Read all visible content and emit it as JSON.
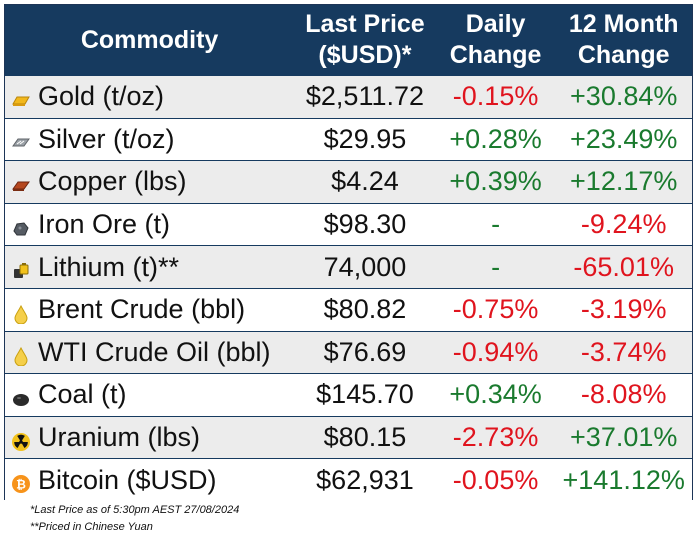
{
  "header": {
    "commodity": "Commodity",
    "last_price_line1": "Last Price",
    "last_price_line2": "($USD)*",
    "daily_line1": "Daily",
    "daily_line2": "Change",
    "month_line1": "12 Month",
    "month_line2": "Change"
  },
  "rows": [
    {
      "name": "Gold (t/oz)",
      "icon": "gold-bar-icon",
      "price": "$2,511.72",
      "daily": "-0.15%",
      "daily_dir": "neg",
      "yearly": "+30.84%",
      "yearly_dir": "pos"
    },
    {
      "name": "Silver (t/oz)",
      "icon": "silver-bar-icon",
      "price": "$29.95",
      "daily": "+0.28%",
      "daily_dir": "pos",
      "yearly": "+23.49%",
      "yearly_dir": "pos"
    },
    {
      "name": "Copper (lbs)",
      "icon": "copper-bar-icon",
      "price": "$4.24",
      "daily": "+0.39%",
      "daily_dir": "pos",
      "yearly": "+12.17%",
      "yearly_dir": "pos"
    },
    {
      "name": "Iron Ore (t)",
      "icon": "iron-ore-icon",
      "price": "$98.30",
      "daily": "-",
      "daily_dir": "neu",
      "yearly": "-9.24%",
      "yearly_dir": "neg"
    },
    {
      "name": "Lithium (t)**",
      "icon": "lithium-battery-icon",
      "price": "74,000",
      "daily": "-",
      "daily_dir": "neu",
      "yearly": "-65.01%",
      "yearly_dir": "neg"
    },
    {
      "name": "Brent Crude (bbl)",
      "icon": "oil-drop-icon",
      "price": "$80.82",
      "daily": "-0.75%",
      "daily_dir": "neg",
      "yearly": "-3.19%",
      "yearly_dir": "neg"
    },
    {
      "name": "WTI Crude Oil (bbl)",
      "icon": "oil-drop-icon",
      "price": "$76.69",
      "daily": "-0.94%",
      "daily_dir": "neg",
      "yearly": "-3.74%",
      "yearly_dir": "neg"
    },
    {
      "name": "Coal (t)",
      "icon": "coal-icon",
      "price": "$145.70",
      "daily": "+0.34%",
      "daily_dir": "pos",
      "yearly": "-8.08%",
      "yearly_dir": "neg"
    },
    {
      "name": "Uranium (lbs)",
      "icon": "radiation-icon",
      "price": "$80.15",
      "daily": "-2.73%",
      "daily_dir": "neg",
      "yearly": "+37.01%",
      "yearly_dir": "pos"
    },
    {
      "name": "Bitcoin ($USD)",
      "icon": "bitcoin-icon",
      "price": "$62,931",
      "daily": "-0.05%",
      "daily_dir": "neg",
      "yearly": "+141.12%",
      "yearly_dir": "pos"
    }
  ],
  "footnotes": {
    "note1": "*Last Price as of 5:30pm AEST 27/08/2024",
    "note2": "**Priced in Chinese Yuan"
  },
  "colors": {
    "header_bg": "#163a5f",
    "positive": "#1a7a2e",
    "negative": "#e0141e",
    "row_alt": "#ececec"
  }
}
